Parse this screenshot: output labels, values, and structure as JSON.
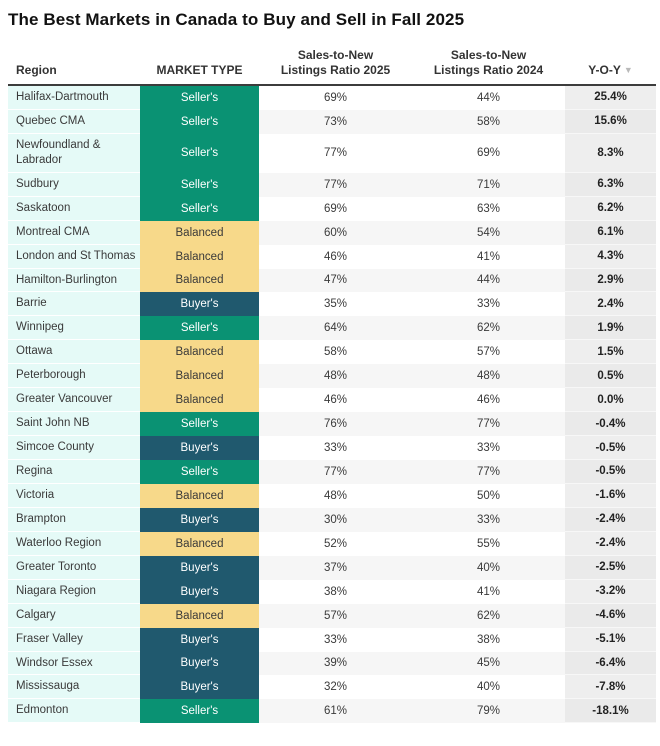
{
  "title": "The Best Markets in Canada to Buy and Sell in Fall 2025",
  "header": {
    "region": "Region",
    "market_type": "MARKET TYPE",
    "ratio_2025": "Sales-to-New Listings Ratio 2025",
    "ratio_2024": "Sales-to-New Listings Ratio 2024",
    "yoy": "Y-O-Y",
    "sort_icon": "▼"
  },
  "market_type_colors": {
    "Seller's": "#0a9273",
    "Balanced": "#f7d98a",
    "Buyer's": "#20596e"
  },
  "chart_data": {
    "type": "table",
    "title": "The Best Markets in Canada to Buy and Sell in Fall 2025",
    "columns": [
      "Region",
      "MARKET TYPE",
      "Sales-to-New Listings Ratio 2025",
      "Sales-to-New Listings Ratio 2024",
      "Y-O-Y"
    ],
    "sorted_by": "Y-O-Y descending",
    "rows": [
      {
        "region": "Halifax-Dartmouth",
        "market_type": "Seller's",
        "ratio_2025": "69%",
        "ratio_2024": "44%",
        "yoy": "25.4%"
      },
      {
        "region": "Quebec CMA",
        "market_type": "Seller's",
        "ratio_2025": "73%",
        "ratio_2024": "58%",
        "yoy": "15.6%"
      },
      {
        "region": "Newfoundland & Labrador",
        "market_type": "Seller's",
        "ratio_2025": "77%",
        "ratio_2024": "69%",
        "yoy": "8.3%"
      },
      {
        "region": "Sudbury",
        "market_type": "Seller's",
        "ratio_2025": "77%",
        "ratio_2024": "71%",
        "yoy": "6.3%"
      },
      {
        "region": "Saskatoon",
        "market_type": "Seller's",
        "ratio_2025": "69%",
        "ratio_2024": "63%",
        "yoy": "6.2%"
      },
      {
        "region": "Montreal CMA",
        "market_type": "Balanced",
        "ratio_2025": "60%",
        "ratio_2024": "54%",
        "yoy": "6.1%"
      },
      {
        "region": "London and St Thomas",
        "market_type": "Balanced",
        "ratio_2025": "46%",
        "ratio_2024": "41%",
        "yoy": "4.3%"
      },
      {
        "region": "Hamilton-Burlington",
        "market_type": "Balanced",
        "ratio_2025": "47%",
        "ratio_2024": "44%",
        "yoy": "2.9%"
      },
      {
        "region": "Barrie",
        "market_type": "Buyer's",
        "ratio_2025": "35%",
        "ratio_2024": "33%",
        "yoy": "2.4%"
      },
      {
        "region": "Winnipeg",
        "market_type": "Seller's",
        "ratio_2025": "64%",
        "ratio_2024": "62%",
        "yoy": "1.9%"
      },
      {
        "region": "Ottawa",
        "market_type": "Balanced",
        "ratio_2025": "58%",
        "ratio_2024": "57%",
        "yoy": "1.5%"
      },
      {
        "region": "Peterborough",
        "market_type": "Balanced",
        "ratio_2025": "48%",
        "ratio_2024": "48%",
        "yoy": "0.5%"
      },
      {
        "region": "Greater Vancouver",
        "market_type": "Balanced",
        "ratio_2025": "46%",
        "ratio_2024": "46%",
        "yoy": "0.0%"
      },
      {
        "region": "Saint John NB",
        "market_type": "Seller's",
        "ratio_2025": "76%",
        "ratio_2024": "77%",
        "yoy": "-0.4%"
      },
      {
        "region": "Simcoe County",
        "market_type": "Buyer's",
        "ratio_2025": "33%",
        "ratio_2024": "33%",
        "yoy": "-0.5%"
      },
      {
        "region": "Regina",
        "market_type": "Seller's",
        "ratio_2025": "77%",
        "ratio_2024": "77%",
        "yoy": "-0.5%"
      },
      {
        "region": "Victoria",
        "market_type": "Balanced",
        "ratio_2025": "48%",
        "ratio_2024": "50%",
        "yoy": "-1.6%"
      },
      {
        "region": "Brampton",
        "market_type": "Buyer's",
        "ratio_2025": "30%",
        "ratio_2024": "33%",
        "yoy": "-2.4%"
      },
      {
        "region": "Waterloo Region",
        "market_type": "Balanced",
        "ratio_2025": "52%",
        "ratio_2024": "55%",
        "yoy": "-2.4%"
      },
      {
        "region": "Greater Toronto",
        "market_type": "Buyer's",
        "ratio_2025": "37%",
        "ratio_2024": "40%",
        "yoy": "-2.5%"
      },
      {
        "region": "Niagara Region",
        "market_type": "Buyer's",
        "ratio_2025": "38%",
        "ratio_2024": "41%",
        "yoy": "-3.2%"
      },
      {
        "region": "Calgary",
        "market_type": "Balanced",
        "ratio_2025": "57%",
        "ratio_2024": "62%",
        "yoy": "-4.6%"
      },
      {
        "region": "Fraser Valley",
        "market_type": "Buyer's",
        "ratio_2025": "33%",
        "ratio_2024": "38%",
        "yoy": "-5.1%"
      },
      {
        "region": "Windsor Essex",
        "market_type": "Buyer's",
        "ratio_2025": "39%",
        "ratio_2024": "45%",
        "yoy": "-6.4%"
      },
      {
        "region": "Mississauga",
        "market_type": "Buyer's",
        "ratio_2025": "32%",
        "ratio_2024": "40%",
        "yoy": "-7.8%"
      },
      {
        "region": "Edmonton",
        "market_type": "Seller's",
        "ratio_2025": "61%",
        "ratio_2024": "79%",
        "yoy": "-18.1%"
      }
    ]
  }
}
